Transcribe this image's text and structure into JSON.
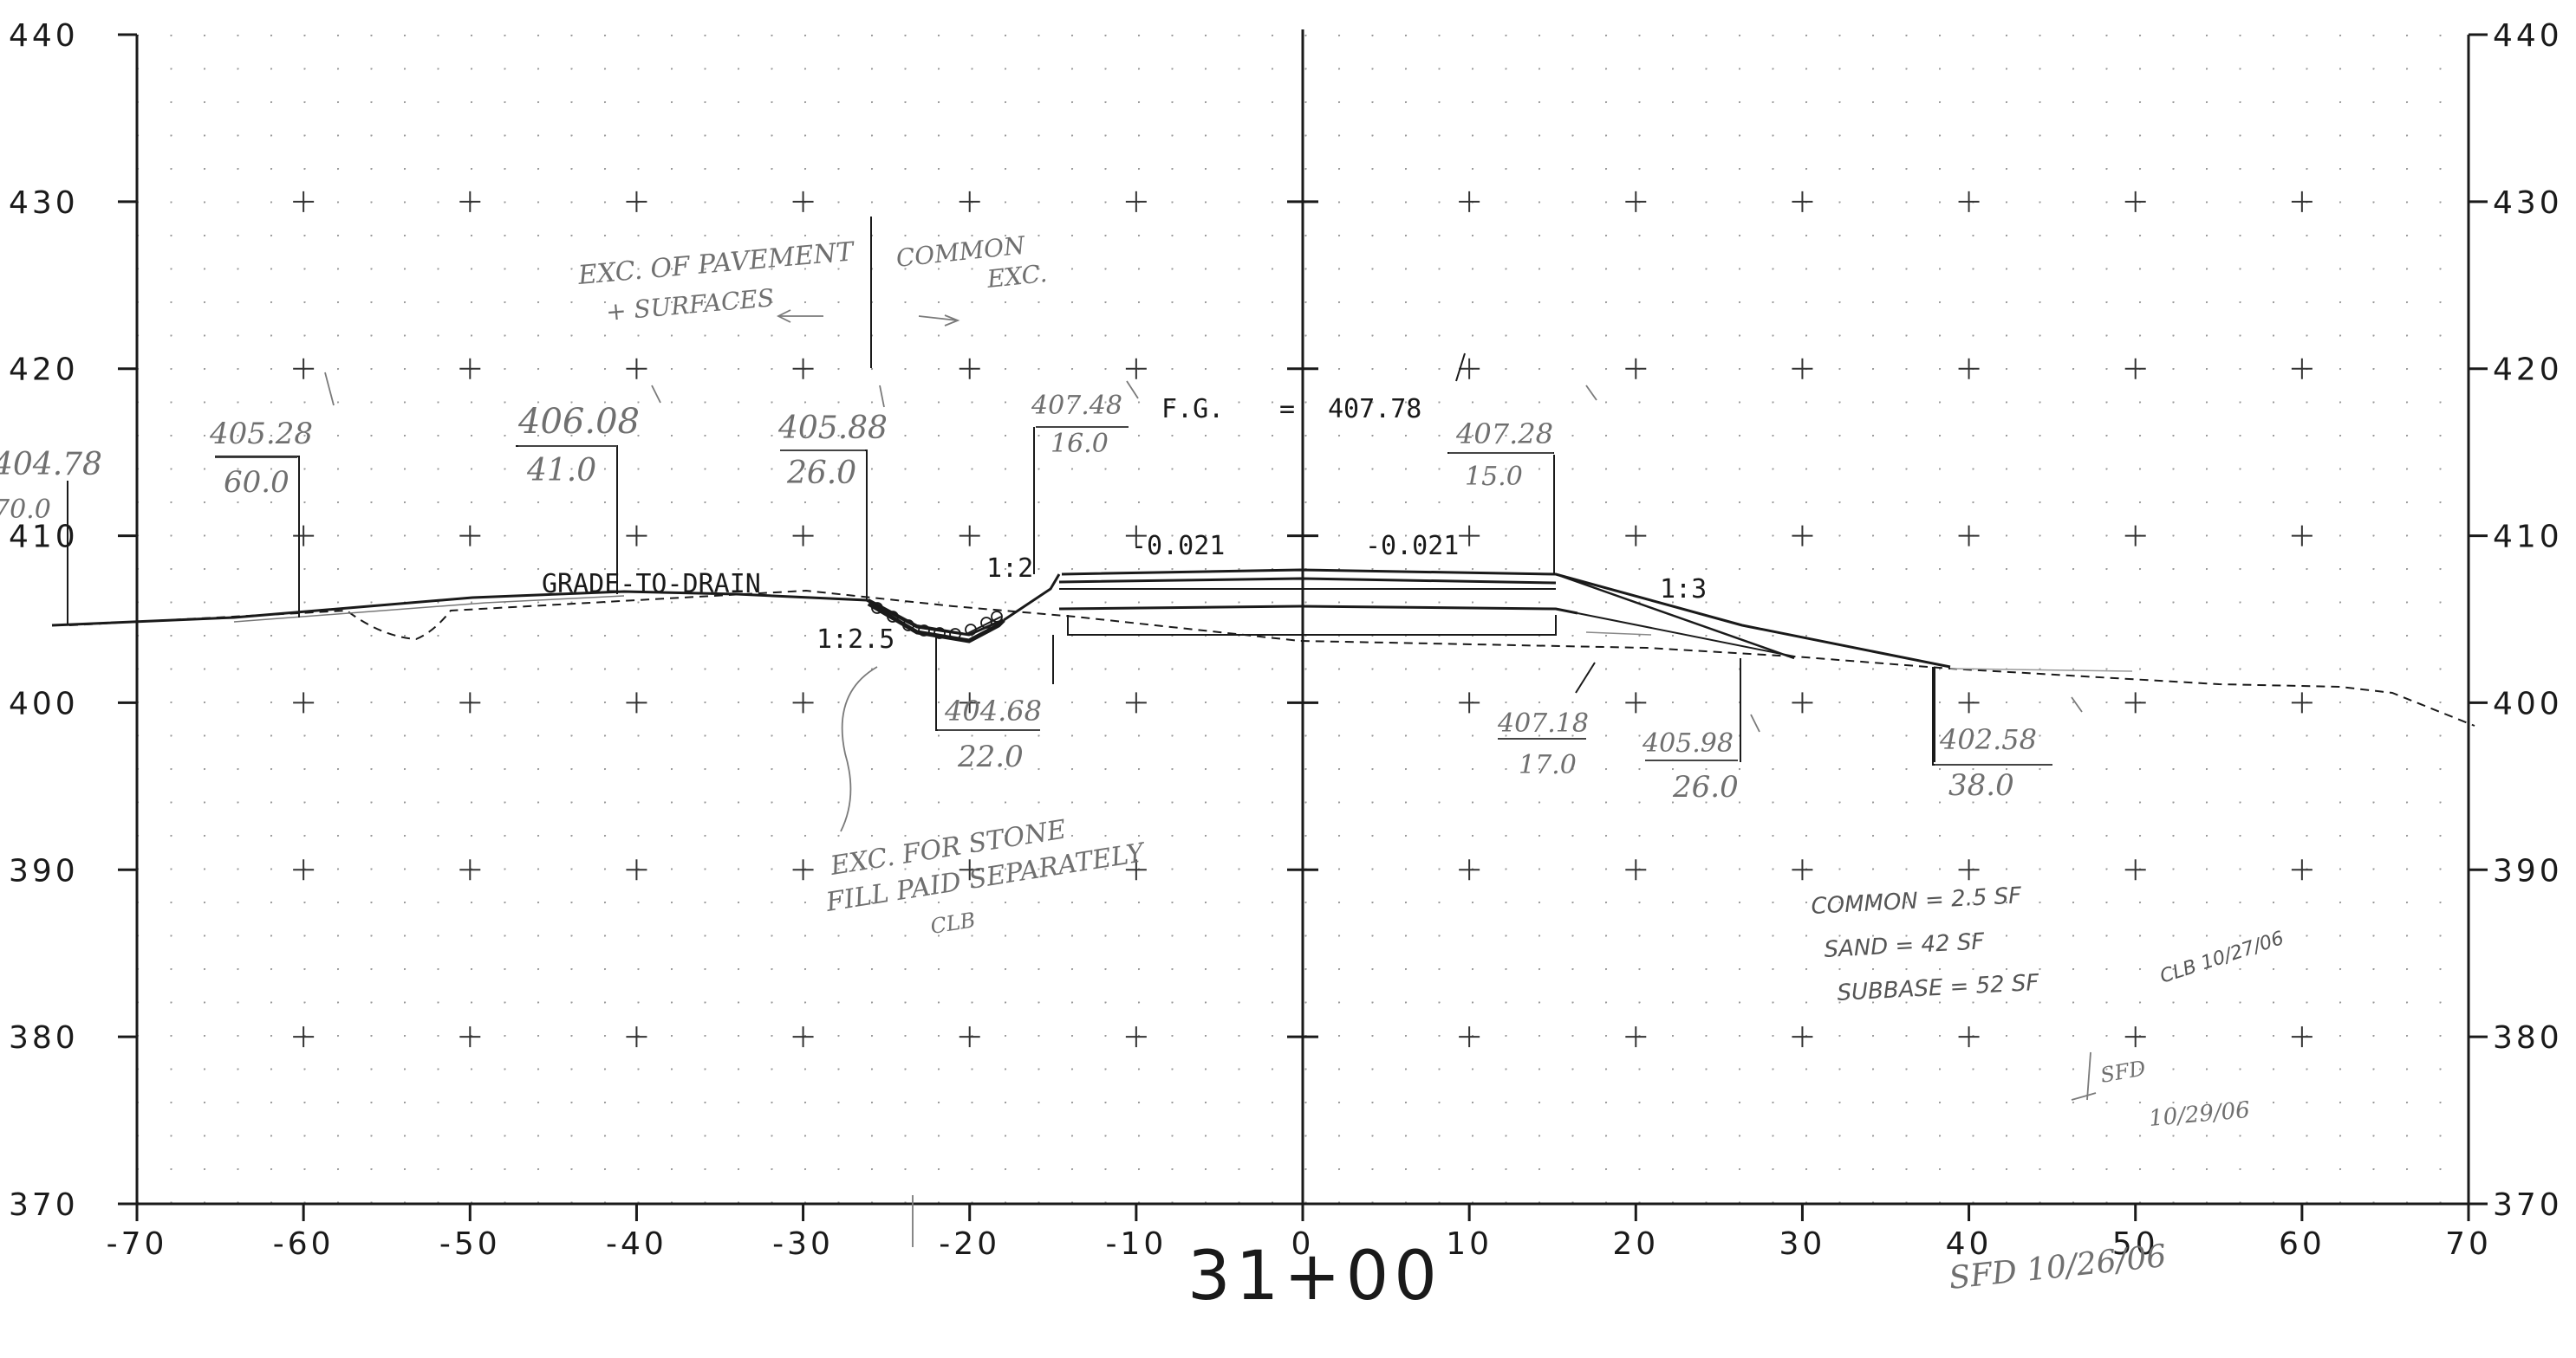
{
  "sheet": {
    "station_label": "31+00",
    "y_ticks": [
      "440",
      "430",
      "420",
      "410",
      "400",
      "390",
      "380",
      "370"
    ],
    "x_ticks": [
      "-70",
      "-60",
      "-50",
      "-40",
      "-30",
      "-20",
      "-10",
      "0",
      "10",
      "20",
      "30",
      "40",
      "50",
      "60",
      "70"
    ]
  },
  "design_labels": {
    "fg_label": "F.G.",
    "fg_eq": "=",
    "fg_value": "407.78",
    "slope_left": "-0.021",
    "slope_right": "-0.021",
    "grade_to_drain": "GRADE-TO-DRAIN",
    "ratio_1_2": "1:2",
    "ratio_1_25": "1:2.5",
    "ratio_1_3": "1:3"
  },
  "offset_labels": [
    {
      "elev": "404.78",
      "offset": "70.0"
    },
    {
      "elev": "405.28",
      "offset": "60.0"
    },
    {
      "elev": "406.08",
      "offset": "41.0"
    },
    {
      "elev": "405.88",
      "offset": "26.0"
    },
    {
      "elev": "404.68",
      "offset": "22.0"
    },
    {
      "elev": "407.48",
      "offset": "16.0"
    },
    {
      "elev": "407.28",
      "offset": "15.0"
    },
    {
      "elev": "407.18",
      "offset": "17.0"
    },
    {
      "elev": "405.98",
      "offset": "26.0"
    },
    {
      "elev": "402.58",
      "offset": "38.0"
    }
  ],
  "notes": {
    "exc_pavement_1": "EXC. OF PAVEMENT",
    "exc_pavement_2": "+ SURFACES",
    "common_exc_1": "COMMON",
    "common_exc_2": "EXC.",
    "stone_fill_1": "EXC. FOR STONE",
    "stone_fill_2": "FILL PAID SEPARATELY",
    "stone_fill_3": "CLB",
    "qty_common": "COMMON = 2.5 SF",
    "qty_sand": "SAND = 42 SF",
    "qty_subbase": "SUBBASE = 52 SF",
    "qty_check": "CLB 10/27/06",
    "sfd_check": "SFD",
    "sfd_check_date": "10/29/06",
    "signoff": "SFD 10/26/06"
  },
  "colors": {
    "grid": "#a9a9a9",
    "ink": "#1a1a1a",
    "pencil": "#6f6f6f"
  }
}
